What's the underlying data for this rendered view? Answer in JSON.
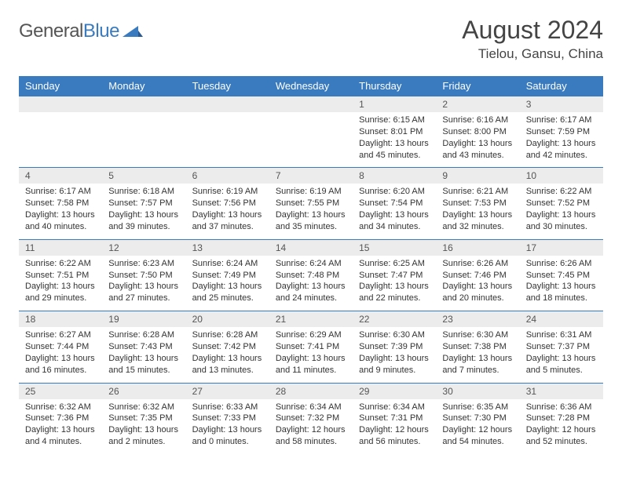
{
  "brand": {
    "name_a": "General",
    "name_b": "Blue"
  },
  "title": "August 2024",
  "location": "Tielou, Gansu, China",
  "colors": {
    "accent": "#3a7bbf",
    "dayrow_bg": "#ececec",
    "text": "#333333",
    "title": "#444444"
  },
  "days_of_week": [
    "Sunday",
    "Monday",
    "Tuesday",
    "Wednesday",
    "Thursday",
    "Friday",
    "Saturday"
  ],
  "weeks": [
    [
      {
        "n": "",
        "sr": "",
        "ss": "",
        "dl": ""
      },
      {
        "n": "",
        "sr": "",
        "ss": "",
        "dl": ""
      },
      {
        "n": "",
        "sr": "",
        "ss": "",
        "dl": ""
      },
      {
        "n": "",
        "sr": "",
        "ss": "",
        "dl": ""
      },
      {
        "n": "1",
        "sr": "Sunrise: 6:15 AM",
        "ss": "Sunset: 8:01 PM",
        "dl": "Daylight: 13 hours and 45 minutes."
      },
      {
        "n": "2",
        "sr": "Sunrise: 6:16 AM",
        "ss": "Sunset: 8:00 PM",
        "dl": "Daylight: 13 hours and 43 minutes."
      },
      {
        "n": "3",
        "sr": "Sunrise: 6:17 AM",
        "ss": "Sunset: 7:59 PM",
        "dl": "Daylight: 13 hours and 42 minutes."
      }
    ],
    [
      {
        "n": "4",
        "sr": "Sunrise: 6:17 AM",
        "ss": "Sunset: 7:58 PM",
        "dl": "Daylight: 13 hours and 40 minutes."
      },
      {
        "n": "5",
        "sr": "Sunrise: 6:18 AM",
        "ss": "Sunset: 7:57 PM",
        "dl": "Daylight: 13 hours and 39 minutes."
      },
      {
        "n": "6",
        "sr": "Sunrise: 6:19 AM",
        "ss": "Sunset: 7:56 PM",
        "dl": "Daylight: 13 hours and 37 minutes."
      },
      {
        "n": "7",
        "sr": "Sunrise: 6:19 AM",
        "ss": "Sunset: 7:55 PM",
        "dl": "Daylight: 13 hours and 35 minutes."
      },
      {
        "n": "8",
        "sr": "Sunrise: 6:20 AM",
        "ss": "Sunset: 7:54 PM",
        "dl": "Daylight: 13 hours and 34 minutes."
      },
      {
        "n": "9",
        "sr": "Sunrise: 6:21 AM",
        "ss": "Sunset: 7:53 PM",
        "dl": "Daylight: 13 hours and 32 minutes."
      },
      {
        "n": "10",
        "sr": "Sunrise: 6:22 AM",
        "ss": "Sunset: 7:52 PM",
        "dl": "Daylight: 13 hours and 30 minutes."
      }
    ],
    [
      {
        "n": "11",
        "sr": "Sunrise: 6:22 AM",
        "ss": "Sunset: 7:51 PM",
        "dl": "Daylight: 13 hours and 29 minutes."
      },
      {
        "n": "12",
        "sr": "Sunrise: 6:23 AM",
        "ss": "Sunset: 7:50 PM",
        "dl": "Daylight: 13 hours and 27 minutes."
      },
      {
        "n": "13",
        "sr": "Sunrise: 6:24 AM",
        "ss": "Sunset: 7:49 PM",
        "dl": "Daylight: 13 hours and 25 minutes."
      },
      {
        "n": "14",
        "sr": "Sunrise: 6:24 AM",
        "ss": "Sunset: 7:48 PM",
        "dl": "Daylight: 13 hours and 24 minutes."
      },
      {
        "n": "15",
        "sr": "Sunrise: 6:25 AM",
        "ss": "Sunset: 7:47 PM",
        "dl": "Daylight: 13 hours and 22 minutes."
      },
      {
        "n": "16",
        "sr": "Sunrise: 6:26 AM",
        "ss": "Sunset: 7:46 PM",
        "dl": "Daylight: 13 hours and 20 minutes."
      },
      {
        "n": "17",
        "sr": "Sunrise: 6:26 AM",
        "ss": "Sunset: 7:45 PM",
        "dl": "Daylight: 13 hours and 18 minutes."
      }
    ],
    [
      {
        "n": "18",
        "sr": "Sunrise: 6:27 AM",
        "ss": "Sunset: 7:44 PM",
        "dl": "Daylight: 13 hours and 16 minutes."
      },
      {
        "n": "19",
        "sr": "Sunrise: 6:28 AM",
        "ss": "Sunset: 7:43 PM",
        "dl": "Daylight: 13 hours and 15 minutes."
      },
      {
        "n": "20",
        "sr": "Sunrise: 6:28 AM",
        "ss": "Sunset: 7:42 PM",
        "dl": "Daylight: 13 hours and 13 minutes."
      },
      {
        "n": "21",
        "sr": "Sunrise: 6:29 AM",
        "ss": "Sunset: 7:41 PM",
        "dl": "Daylight: 13 hours and 11 minutes."
      },
      {
        "n": "22",
        "sr": "Sunrise: 6:30 AM",
        "ss": "Sunset: 7:39 PM",
        "dl": "Daylight: 13 hours and 9 minutes."
      },
      {
        "n": "23",
        "sr": "Sunrise: 6:30 AM",
        "ss": "Sunset: 7:38 PM",
        "dl": "Daylight: 13 hours and 7 minutes."
      },
      {
        "n": "24",
        "sr": "Sunrise: 6:31 AM",
        "ss": "Sunset: 7:37 PM",
        "dl": "Daylight: 13 hours and 5 minutes."
      }
    ],
    [
      {
        "n": "25",
        "sr": "Sunrise: 6:32 AM",
        "ss": "Sunset: 7:36 PM",
        "dl": "Daylight: 13 hours and 4 minutes."
      },
      {
        "n": "26",
        "sr": "Sunrise: 6:32 AM",
        "ss": "Sunset: 7:35 PM",
        "dl": "Daylight: 13 hours and 2 minutes."
      },
      {
        "n": "27",
        "sr": "Sunrise: 6:33 AM",
        "ss": "Sunset: 7:33 PM",
        "dl": "Daylight: 13 hours and 0 minutes."
      },
      {
        "n": "28",
        "sr": "Sunrise: 6:34 AM",
        "ss": "Sunset: 7:32 PM",
        "dl": "Daylight: 12 hours and 58 minutes."
      },
      {
        "n": "29",
        "sr": "Sunrise: 6:34 AM",
        "ss": "Sunset: 7:31 PM",
        "dl": "Daylight: 12 hours and 56 minutes."
      },
      {
        "n": "30",
        "sr": "Sunrise: 6:35 AM",
        "ss": "Sunset: 7:30 PM",
        "dl": "Daylight: 12 hours and 54 minutes."
      },
      {
        "n": "31",
        "sr": "Sunrise: 6:36 AM",
        "ss": "Sunset: 7:28 PM",
        "dl": "Daylight: 12 hours and 52 minutes."
      }
    ]
  ]
}
